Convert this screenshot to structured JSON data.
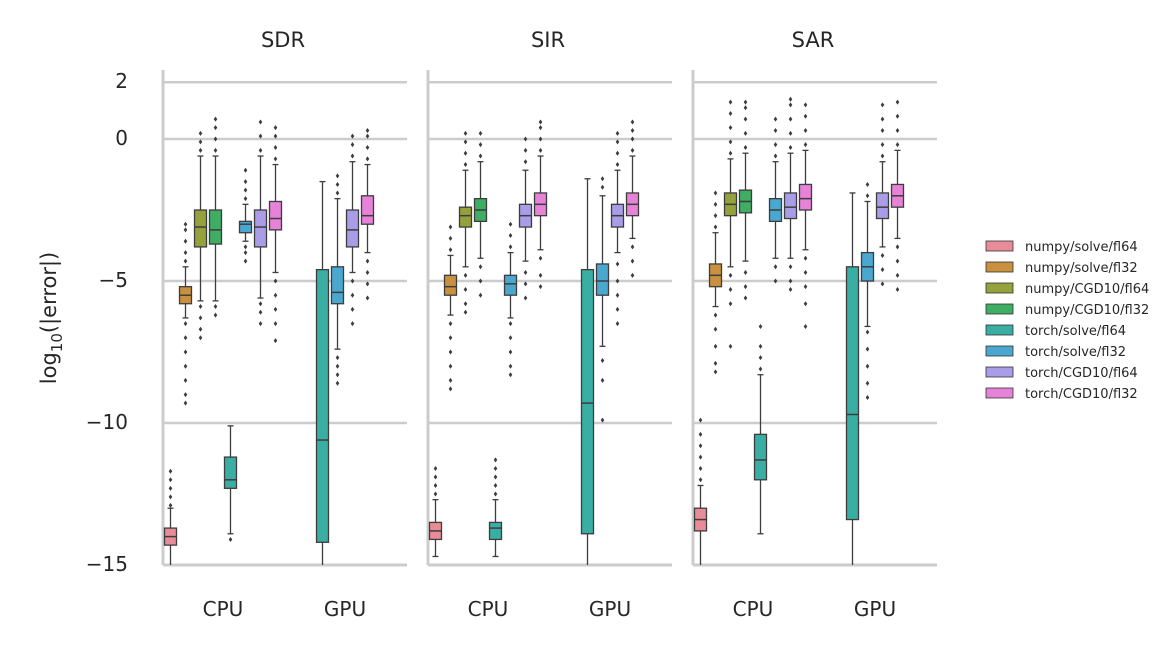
{
  "chart_data": {
    "type": "box",
    "ylabel": "log10(|error|)",
    "ylim": [
      -15,
      2.5
    ],
    "yticks": [
      2,
      0,
      -5,
      -10,
      -15
    ],
    "ytick_labels": [
      "2",
      "0",
      "−5",
      "−10",
      "−15"
    ],
    "grid": "horizontal",
    "legend_position": "right",
    "categories": [
      "CPU",
      "GPU"
    ],
    "series": [
      {
        "name": "numpy/solve/fl64",
        "color": "#e88c98"
      },
      {
        "name": "numpy/solve/fl32",
        "color": "#c9913f"
      },
      {
        "name": "numpy/CGD10/fl64",
        "color": "#95a13a"
      },
      {
        "name": "numpy/CGD10/fl32",
        "color": "#3fad64"
      },
      {
        "name": "torch/solve/fl64",
        "color": "#3aaea3"
      },
      {
        "name": "torch/solve/fl32",
        "color": "#4aa7d0"
      },
      {
        "name": "torch/CGD10/fl64",
        "color": "#a99de8"
      },
      {
        "name": "torch/CGD10/fl32",
        "color": "#e682d8"
      }
    ],
    "panels": [
      {
        "title": "SDR",
        "boxes": [
          {
            "series": 0,
            "category": "CPU",
            "q1": -14.3,
            "median": -14.0,
            "q3": -13.7,
            "wlo": -15.0,
            "whi": -13.0,
            "flo": [],
            "fhi": [
              -12.9,
              -12.6,
              -12.3,
              -12.0,
              -11.7
            ]
          },
          {
            "series": 1,
            "category": "CPU",
            "q1": -5.8,
            "median": -5.5,
            "q3": -5.2,
            "wlo": -6.3,
            "whi": -4.5,
            "flo": [
              -6.5,
              -7.0,
              -7.5,
              -8.0,
              -8.5,
              -9.0,
              -9.3
            ],
            "fhi": [
              -4.3,
              -4.0,
              -3.6,
              -3.2,
              -3.0
            ]
          },
          {
            "series": 2,
            "category": "CPU",
            "q1": -3.8,
            "median": -3.1,
            "q3": -2.5,
            "wlo": -5.7,
            "whi": -0.6,
            "flo": [
              -5.9,
              -6.3,
              -6.7,
              -7.0
            ],
            "fhi": [
              -0.4,
              -0.1,
              0.2
            ]
          },
          {
            "series": 3,
            "category": "CPU",
            "q1": -3.7,
            "median": -3.2,
            "q3": -2.5,
            "wlo": -5.7,
            "whi": -0.6,
            "flo": [
              -5.9,
              -6.2
            ],
            "fhi": [
              -0.4,
              0.0,
              0.4,
              0.7
            ]
          },
          {
            "series": 4,
            "category": "CPU",
            "q1": -12.3,
            "median": -12.0,
            "q3": -11.2,
            "wlo": -13.9,
            "whi": -10.1,
            "flo": [
              -14.1
            ],
            "fhi": []
          },
          {
            "series": 5,
            "category": "CPU",
            "q1": -3.3,
            "median": -3.0,
            "q3": -2.9,
            "wlo": -3.6,
            "whi": -2.3,
            "flo": [
              -3.8,
              -4.0,
              -4.3
            ],
            "fhi": [
              -2.1,
              -1.8,
              -1.5,
              -1.1
            ]
          },
          {
            "series": 6,
            "category": "CPU",
            "q1": -3.8,
            "median": -3.1,
            "q3": -2.5,
            "wlo": -5.6,
            "whi": -0.6,
            "flo": [
              -5.8,
              -6.1,
              -6.5
            ],
            "fhi": [
              -0.4,
              0.1,
              0.6
            ]
          },
          {
            "series": 7,
            "category": "CPU",
            "q1": -3.2,
            "median": -2.8,
            "q3": -2.2,
            "wlo": -4.7,
            "whi": -0.9,
            "flo": [
              -5.0,
              -5.5,
              -6.0,
              -6.5,
              -7.1
            ],
            "fhi": [
              -0.7,
              -0.3,
              0.1,
              0.4
            ]
          },
          {
            "series": 4,
            "category": "GPU",
            "q1": -14.2,
            "median": -10.6,
            "q3": -4.6,
            "wlo": -15.0,
            "whi": -1.5,
            "flo": [],
            "fhi": []
          },
          {
            "series": 5,
            "category": "GPU",
            "q1": -5.8,
            "median": -5.4,
            "q3": -4.5,
            "wlo": -7.4,
            "whi": -2.1,
            "flo": [
              -7.7,
              -8.0,
              -8.3,
              -8.6
            ],
            "fhi": [
              -1.9,
              -1.6,
              -1.3
            ]
          },
          {
            "series": 6,
            "category": "GPU",
            "q1": -3.8,
            "median": -3.2,
            "q3": -2.5,
            "wlo": -4.7,
            "whi": -0.8,
            "flo": [
              -5.0,
              -5.5,
              -6.0,
              -6.5
            ],
            "fhi": [
              -0.6,
              -0.2,
              0.1
            ]
          },
          {
            "series": 7,
            "category": "GPU",
            "q1": -3.0,
            "median": -2.7,
            "q3": -2.0,
            "wlo": -4.0,
            "whi": -0.9,
            "flo": [
              -4.3,
              -4.7,
              -5.1,
              -5.6
            ],
            "fhi": [
              -0.7,
              -0.3,
              0.1,
              0.3
            ]
          }
        ]
      },
      {
        "title": "SIR",
        "boxes": [
          {
            "series": 0,
            "category": "CPU",
            "q1": -14.1,
            "median": -13.8,
            "q3": -13.5,
            "wlo": -14.7,
            "whi": -12.7,
            "flo": [],
            "fhi": [
              -12.5,
              -12.2,
              -11.9,
              -11.6
            ]
          },
          {
            "series": 1,
            "category": "CPU",
            "q1": -5.5,
            "median": -5.2,
            "q3": -4.8,
            "wlo": -6.2,
            "whi": -4.1,
            "flo": [
              -6.5,
              -7.0,
              -7.5,
              -8.0,
              -8.5,
              -8.8
            ],
            "fhi": [
              -3.9,
              -3.5,
              -3.1
            ]
          },
          {
            "series": 2,
            "category": "CPU",
            "q1": -3.1,
            "median": -2.7,
            "q3": -2.4,
            "wlo": -4.5,
            "whi": -1.1,
            "flo": [
              -4.8,
              -5.3,
              -5.8,
              -6.1
            ],
            "fhi": [
              -0.9,
              -0.5,
              -0.1,
              0.2
            ]
          },
          {
            "series": 3,
            "category": "CPU",
            "q1": -2.9,
            "median": -2.5,
            "q3": -2.1,
            "wlo": -4.2,
            "whi": -0.8,
            "flo": [
              -4.5,
              -5.0,
              -5.5
            ],
            "fhi": [
              -0.6,
              -0.2,
              0.2
            ]
          },
          {
            "series": 4,
            "category": "CPU",
            "q1": -14.1,
            "median": -13.7,
            "q3": -13.5,
            "wlo": -14.7,
            "whi": -12.7,
            "flo": [],
            "fhi": [
              -12.5,
              -12.2,
              -11.9,
              -11.6,
              -11.3
            ]
          },
          {
            "series": 5,
            "category": "CPU",
            "q1": -5.5,
            "median": -5.1,
            "q3": -4.8,
            "wlo": -6.3,
            "whi": -4.0,
            "flo": [
              -6.5,
              -7.0,
              -7.5,
              -8.0,
              -8.3
            ],
            "fhi": [
              -3.8,
              -3.4,
              -3.0
            ]
          },
          {
            "series": 6,
            "category": "CPU",
            "q1": -3.1,
            "median": -2.7,
            "q3": -2.3,
            "wlo": -4.3,
            "whi": -1.1,
            "flo": [
              -4.7,
              -5.1,
              -5.6
            ],
            "fhi": [
              -0.8,
              -0.4,
              0.0
            ]
          },
          {
            "series": 7,
            "category": "CPU",
            "q1": -2.7,
            "median": -2.3,
            "q3": -1.9,
            "wlo": -3.9,
            "whi": -0.6,
            "flo": [
              -4.2,
              -4.8,
              -5.2
            ],
            "fhi": [
              -0.4,
              0.0,
              0.4,
              0.6
            ]
          },
          {
            "series": 4,
            "category": "GPU",
            "q1": -13.9,
            "median": -9.3,
            "q3": -4.6,
            "wlo": -15.0,
            "whi": -1.4,
            "flo": [],
            "fhi": []
          },
          {
            "series": 5,
            "category": "GPU",
            "q1": -5.5,
            "median": -5.0,
            "q3": -4.4,
            "wlo": -7.3,
            "whi": -2.0,
            "flo": [
              -7.8,
              -8.5,
              -9.9
            ],
            "fhi": [
              -1.7,
              -1.4
            ]
          },
          {
            "series": 6,
            "category": "GPU",
            "q1": -3.1,
            "median": -2.7,
            "q3": -2.3,
            "wlo": -4.0,
            "whi": -1.1,
            "flo": [
              -4.4,
              -5.0,
              -5.5,
              -6.0,
              -6.5
            ],
            "fhi": [
              -0.9,
              -0.5,
              -0.1,
              0.2
            ]
          },
          {
            "series": 7,
            "category": "GPU",
            "q1": -2.7,
            "median": -2.3,
            "q3": -1.9,
            "wlo": -3.5,
            "whi": -0.6,
            "flo": [
              -3.8,
              -4.3,
              -4.8
            ],
            "fhi": [
              -0.4,
              0.0,
              0.3,
              0.6
            ]
          }
        ]
      },
      {
        "title": "SAR",
        "boxes": [
          {
            "series": 0,
            "category": "CPU",
            "q1": -13.8,
            "median": -13.4,
            "q3": -13.0,
            "wlo": -15.0,
            "whi": -12.2,
            "flo": [],
            "fhi": [
              -12.0,
              -11.6,
              -11.2,
              -10.8,
              -10.4,
              -9.9
            ]
          },
          {
            "series": 1,
            "category": "CPU",
            "q1": -5.2,
            "median": -4.8,
            "q3": -4.4,
            "wlo": -5.9,
            "whi": -3.3,
            "flo": [
              -6.2,
              -6.7,
              -7.3,
              -7.9,
              -8.2
            ],
            "fhi": [
              -3.1,
              -2.7,
              -2.3,
              -1.9
            ]
          },
          {
            "series": 2,
            "category": "CPU",
            "q1": -2.7,
            "median": -2.3,
            "q3": -1.9,
            "wlo": -4.5,
            "whi": -0.7,
            "flo": [
              -4.8,
              -5.3,
              -5.8,
              -7.3
            ],
            "fhi": [
              -0.5,
              -0.1,
              0.4,
              0.9,
              1.3
            ]
          },
          {
            "series": 3,
            "category": "CPU",
            "q1": -2.6,
            "median": -2.2,
            "q3": -1.8,
            "wlo": -4.3,
            "whi": -0.5,
            "flo": [
              -4.7,
              -5.2,
              -5.6
            ],
            "fhi": [
              -0.3,
              0.2,
              0.7,
              1.1,
              1.3
            ]
          },
          {
            "series": 4,
            "category": "CPU",
            "q1": -12.0,
            "median": -11.3,
            "q3": -10.4,
            "wlo": -13.9,
            "whi": -8.3,
            "flo": [],
            "fhi": [
              -8.1,
              -7.7,
              -7.3,
              -6.6
            ]
          },
          {
            "series": 5,
            "category": "CPU",
            "q1": -2.9,
            "median": -2.5,
            "q3": -2.1,
            "wlo": -4.2,
            "whi": -0.8,
            "flo": [
              -4.5,
              -5.0
            ],
            "fhi": [
              -0.6,
              -0.2,
              0.3,
              0.7
            ]
          },
          {
            "series": 6,
            "category": "CPU",
            "q1": -2.8,
            "median": -2.4,
            "q3": -1.9,
            "wlo": -4.2,
            "whi": -0.5,
            "flo": [
              -4.5,
              -5.0,
              -5.3
            ],
            "fhi": [
              -0.3,
              0.2,
              0.7,
              1.2,
              1.4
            ]
          },
          {
            "series": 7,
            "category": "CPU",
            "q1": -2.5,
            "median": -2.1,
            "q3": -1.6,
            "wlo": -3.9,
            "whi": -0.4,
            "flo": [
              -4.2,
              -4.7,
              -5.2,
              -5.8,
              -6.6
            ],
            "fhi": [
              -0.2,
              0.3,
              0.8,
              1.2
            ]
          },
          {
            "series": 4,
            "category": "GPU",
            "q1": -13.4,
            "median": -9.7,
            "q3": -4.5,
            "wlo": -15.0,
            "whi": -1.9,
            "flo": [],
            "fhi": []
          },
          {
            "series": 5,
            "category": "GPU",
            "q1": -5.0,
            "median": -4.5,
            "q3": -4.0,
            "wlo": -6.6,
            "whi": -2.2,
            "flo": [
              -6.8,
              -7.4,
              -8.0,
              -8.6,
              -9.1
            ],
            "fhi": [
              -2.0,
              -1.6
            ]
          },
          {
            "series": 6,
            "category": "GPU",
            "q1": -2.8,
            "median": -2.4,
            "q3": -1.9,
            "wlo": -3.8,
            "whi": -0.8,
            "flo": [
              -4.1,
              -4.6,
              -5.1
            ],
            "fhi": [
              -0.6,
              -0.2,
              0.3,
              0.7,
              1.2
            ]
          },
          {
            "series": 7,
            "category": "GPU",
            "q1": -2.4,
            "median": -2.0,
            "q3": -1.6,
            "wlo": -3.5,
            "whi": -0.4,
            "flo": [
              -3.8,
              -4.3,
              -4.8,
              -5.3
            ],
            "fhi": [
              -0.2,
              0.3,
              0.8,
              1.3
            ]
          }
        ]
      }
    ]
  }
}
